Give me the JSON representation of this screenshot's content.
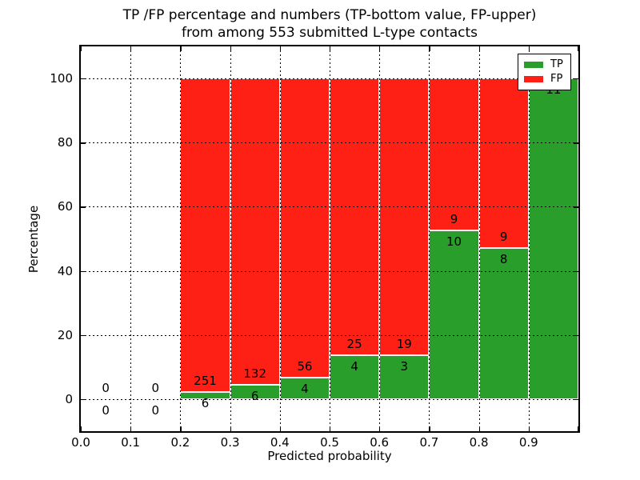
{
  "figure": {
    "title_line1": "TP /FP percentage and numbers (TP-bottom value, FP-upper)",
    "title_line2": "from among 553 submitted L-type contacts"
  },
  "chart_data": {
    "type": "bar",
    "stacked": true,
    "title": "TP /FP percentage and numbers (TP-bottom value, FP-upper) from among 553 submitted L-type contacts",
    "xlabel": "Predicted probability",
    "ylabel": "Percentage",
    "xlim": [
      0.0,
      1.0
    ],
    "ylim": [
      -10,
      110
    ],
    "bin_width": 0.1,
    "x_tick_labels": [
      "0.0",
      "0.1",
      "0.2",
      "0.3",
      "0.4",
      "0.5",
      "0.6",
      "0.7",
      "0.8",
      "0.9"
    ],
    "y_tick_values": [
      0,
      20,
      40,
      60,
      80,
      100
    ],
    "grid": true,
    "grid_style": "dotted",
    "legend_position": "upper right",
    "categories": [
      "0.0-0.1",
      "0.1-0.2",
      "0.2-0.3",
      "0.3-0.4",
      "0.4-0.5",
      "0.5-0.6",
      "0.6-0.7",
      "0.7-0.8",
      "0.8-0.9",
      "0.9-1.0"
    ],
    "series": [
      {
        "name": "TP",
        "color": "#2a9e2b",
        "counts": [
          0,
          0,
          6,
          6,
          4,
          4,
          3,
          10,
          8,
          11
        ]
      },
      {
        "name": "FP",
        "color": "#ff2015",
        "counts": [
          0,
          0,
          251,
          132,
          56,
          25,
          19,
          9,
          9,
          0
        ]
      }
    ],
    "total_contacts": 553,
    "note": "bar heights are TP/FP as percent of each bin total, stacked to 100%; labels show raw counts (FP above TP)"
  }
}
